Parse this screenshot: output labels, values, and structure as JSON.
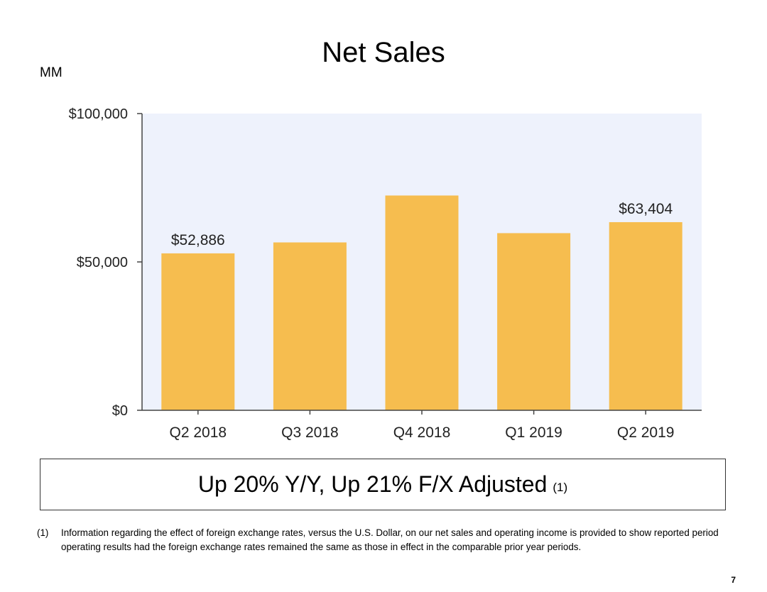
{
  "slide": {
    "title": "Net Sales",
    "unit_label": "MM",
    "callout": {
      "text": "Up 20% Y/Y, Up 21% F/X Adjusted",
      "ref": "(1)"
    },
    "footnote": {
      "number": "(1)",
      "text": "Information regarding the effect of foreign exchange rates, versus the U.S. Dollar, on our net sales and operating income is provided to show reported period operating results had the foreign exchange rates remained the same as those in effect in the comparable prior year periods."
    },
    "page_number": "7"
  },
  "chart_data": {
    "type": "bar",
    "title": "",
    "xlabel": "",
    "ylabel": "",
    "categories": [
      "Q2 2018",
      "Q3 2018",
      "Q4 2018",
      "Q1 2019",
      "Q2 2019"
    ],
    "values": [
      52886,
      56576,
      72383,
      59700,
      63404
    ],
    "data_labels": [
      "$52,886",
      "",
      "",
      "",
      "$63,404"
    ],
    "ylim": [
      0,
      100000
    ],
    "y_ticks": [
      0,
      50000,
      100000
    ],
    "y_tick_labels": [
      "$0",
      "$50,000",
      "$100,000"
    ],
    "grid": false,
    "legend": "none",
    "colors": {
      "bar": "#f6bd4f",
      "plot_background": "#eef2fc",
      "axis": "#444444"
    }
  }
}
